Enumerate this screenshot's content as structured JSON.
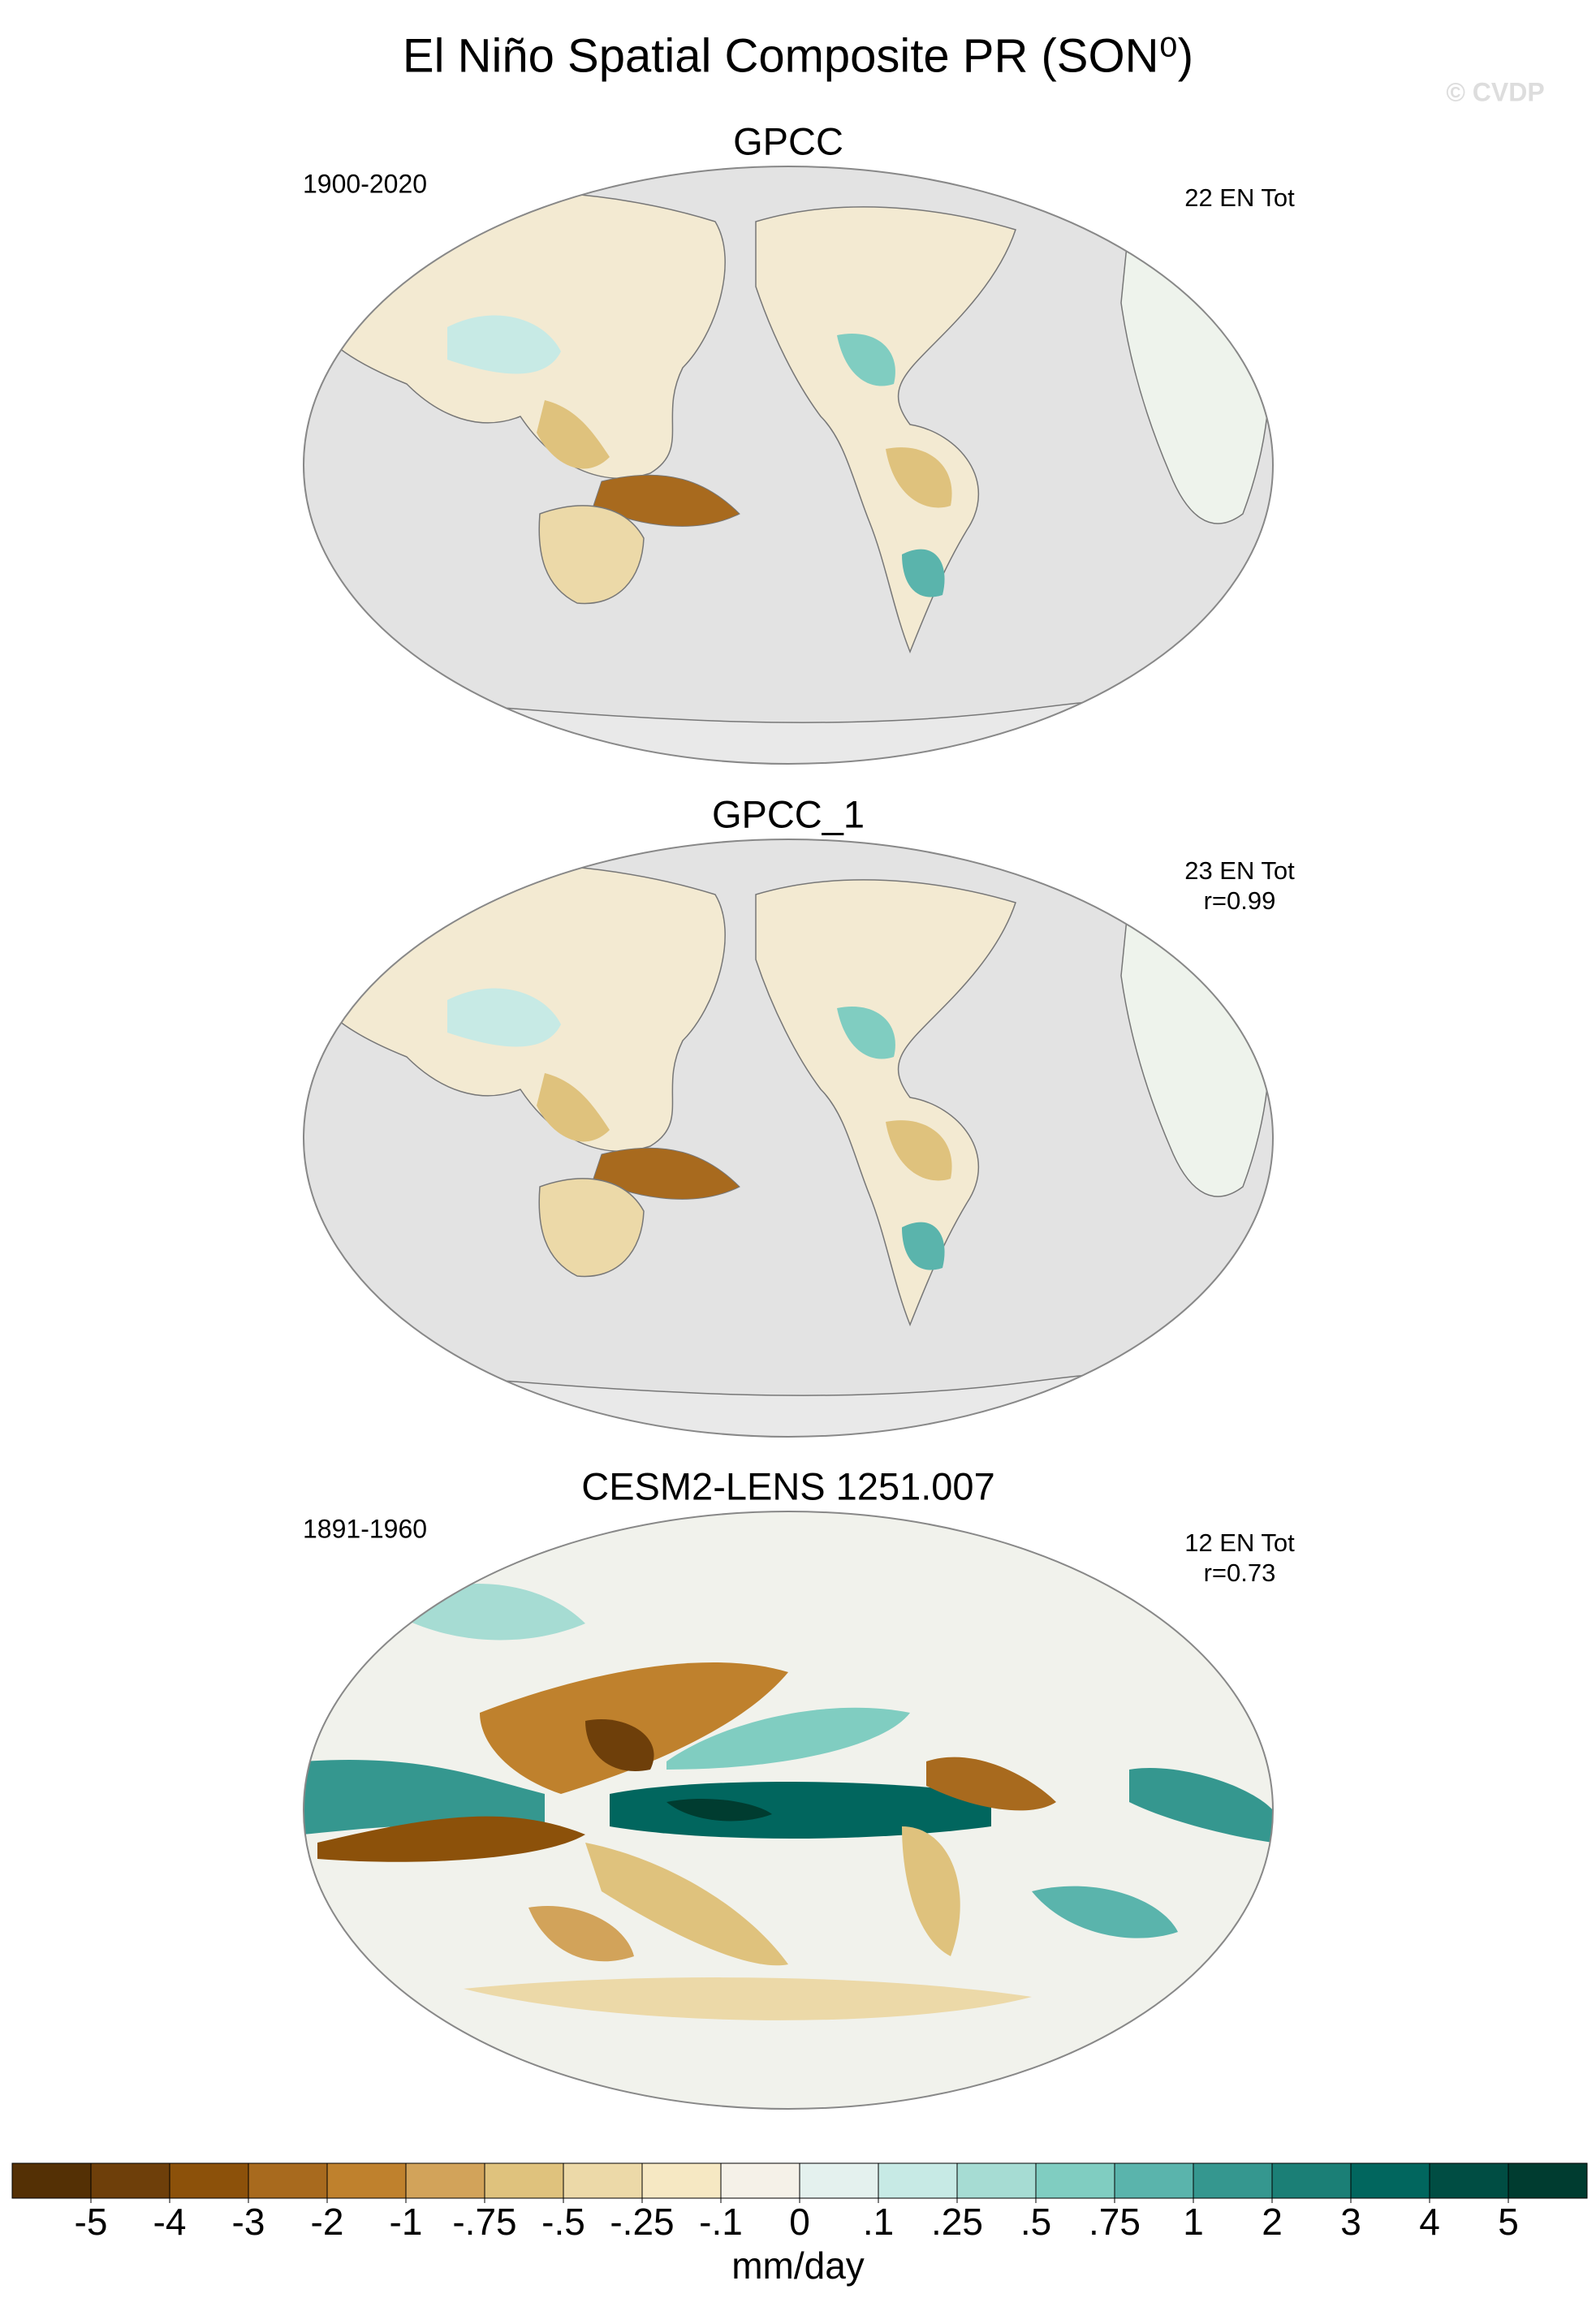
{
  "chart_data": {
    "type": "map-panels",
    "title": "El Niño Spatial Composite PR (SON⁰)",
    "watermark": "© CVDP",
    "panels": [
      {
        "title": "GPCC",
        "left_label": "1900-2020",
        "right_labels": [
          "22 EN Tot"
        ]
      },
      {
        "title": "GPCC_1",
        "right_labels": [
          "23 EN Tot",
          "r=0.99"
        ]
      },
      {
        "title": "CESM2-LENS 1251.007",
        "left_label": "1891-1960",
        "right_labels": [
          "12 EN Tot",
          "r=0.73"
        ]
      }
    ],
    "colorbar": {
      "label": "mm/day",
      "colors": [
        "#543005",
        "#6e3f0a",
        "#8c510a",
        "#a86a1e",
        "#bf812d",
        "#d2a35a",
        "#dfc27d",
        "#ecd9a8",
        "#f6e8c3",
        "#f5f1e8",
        "#e4f1ee",
        "#c7eae5",
        "#a6dcd3",
        "#80cdc1",
        "#5ab4ac",
        "#35978f",
        "#1b7f76",
        "#01665e",
        "#004d43",
        "#003c30"
      ],
      "ticks": [
        -5,
        -4,
        -3,
        -2,
        -1,
        {
          "value": -0.75,
          "label": "-.75"
        },
        {
          "value": -0.5,
          "label": "-.5"
        },
        {
          "value": -0.25,
          "label": "-.25"
        },
        {
          "value": -0.1,
          "label": "-.1"
        },
        0,
        {
          "value": 0.1,
          "label": ".1"
        },
        {
          "value": 0.25,
          "label": ".25"
        },
        {
          "value": 0.5,
          "label": ".5"
        },
        {
          "value": 0.75,
          "label": ".75"
        },
        1,
        2,
        3,
        4,
        5
      ]
    }
  }
}
